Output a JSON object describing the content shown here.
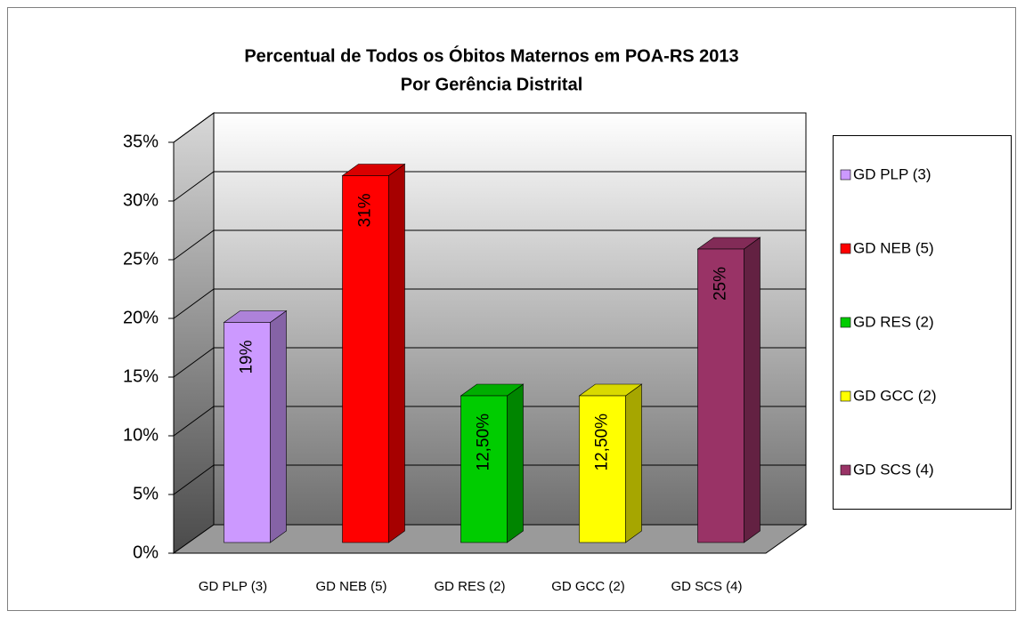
{
  "chart_data": {
    "type": "bar3d",
    "title": "Percentual de Todos os Óbitos Maternos em POA-RS 2013",
    "subtitle": "Por Gerência Distrital",
    "categories": [
      "GD PLP (3)",
      "GD NEB (5)",
      "GD RES (2)",
      "GD GCC (2)",
      "GD SCS (4)"
    ],
    "values": [
      18.75,
      31.25,
      12.5,
      12.5,
      25
    ],
    "value_labels": [
      "19%",
      "31%",
      "12,50%",
      "12,50%",
      "25%"
    ],
    "colors": [
      "#cc99ff",
      "#ff0000",
      "#00cc00",
      "#ffff00",
      "#993366"
    ],
    "ylim": [
      0,
      35
    ],
    "yticks": [
      {
        "value": 0,
        "label": "0%"
      },
      {
        "value": 5,
        "label": "5%"
      },
      {
        "value": 10,
        "label": "10%"
      },
      {
        "value": 15,
        "label": "15%"
      },
      {
        "value": 20,
        "label": "20%"
      },
      {
        "value": 25,
        "label": "25%"
      },
      {
        "value": 30,
        "label": "30%"
      },
      {
        "value": 35,
        "label": "35%"
      }
    ],
    "grid": true,
    "legend": "right"
  }
}
